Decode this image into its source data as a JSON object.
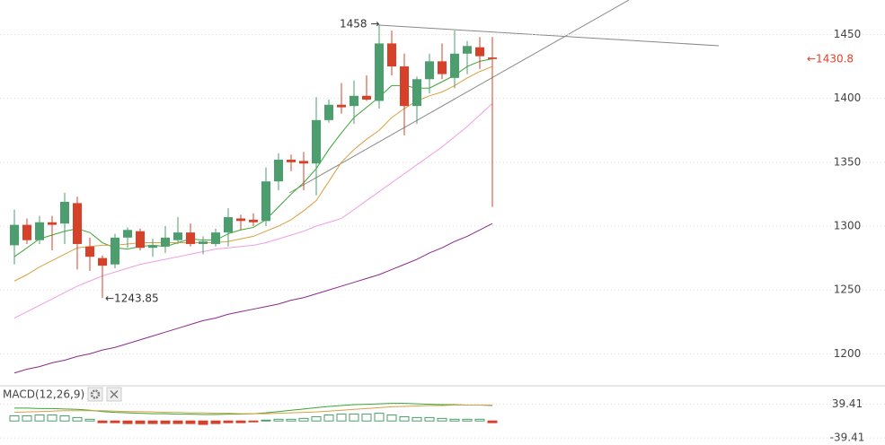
{
  "chart_data": [
    {
      "type": "candlestick",
      "open": [
        1285,
        1301,
        1289,
        1303,
        1302,
        1318,
        1284,
        1275,
        1270,
        1291,
        1296,
        1283,
        1284,
        1289,
        1295,
        1286,
        1286,
        1295,
        1306,
        1305,
        1304,
        1335,
        1352,
        1351,
        1349,
        1383,
        1395,
        1394,
        1402,
        1398,
        1443,
        1425,
        1394,
        1415,
        1429,
        1416,
        1435,
        1440,
        1432
      ],
      "high": [
        1313,
        1306,
        1308,
        1308,
        1326,
        1323,
        1291,
        1277,
        1294,
        1299,
        1298,
        1290,
        1300,
        1307,
        1302,
        1292,
        1298,
        1314,
        1309,
        1310,
        1346,
        1357,
        1356,
        1358,
        1401,
        1399,
        1412,
        1414,
        1418,
        1458,
        1453,
        1435,
        1417,
        1435,
        1443,
        1453,
        1445,
        1448,
        1448
      ],
      "low": [
        1270,
        1286,
        1286,
        1281,
        1286,
        1266,
        1265,
        1243.85,
        1267,
        1283,
        1281,
        1276,
        1279,
        1286,
        1284,
        1278,
        1284,
        1284,
        1297,
        1300,
        1300,
        1328,
        1343,
        1328,
        1324,
        1381,
        1388,
        1380,
        1398,
        1392,
        1418,
        1371,
        1380,
        1404,
        1415,
        1408,
        1419,
        1423,
        1315
      ],
      "close": [
        1301,
        1289,
        1303,
        1301,
        1319,
        1286,
        1276,
        1269,
        1291,
        1297,
        1283,
        1285,
        1291,
        1295,
        1286,
        1288,
        1295,
        1307,
        1304,
        1303,
        1335,
        1352,
        1350,
        1349,
        1383,
        1395,
        1393,
        1402,
        1399,
        1443,
        1425,
        1394,
        1415,
        1429,
        1419,
        1435,
        1441,
        1433,
        1430.8
      ],
      "up_color": "#4d9e6e",
      "down_color": "#d6412a",
      "lines": [
        {
          "color": "#3aa535",
          "values": [
            1276,
            1283,
            1290,
            1293,
            1296,
            1298,
            1295,
            1287,
            1283,
            1282,
            1284,
            1285,
            1284,
            1287,
            1290,
            1289,
            1289,
            1294,
            1297,
            1299,
            1305,
            1315,
            1325,
            1334,
            1345,
            1360,
            1373,
            1385,
            1393,
            1401,
            1410,
            1410,
            1408,
            1408,
            1413,
            1418,
            1425,
            1429,
            1431
          ]
        },
        {
          "color": "#d9a043",
          "values": [
            1257,
            1262,
            1268,
            1273,
            1278,
            1283,
            1284,
            1285,
            1285,
            1286,
            1287,
            1287,
            1287,
            1287,
            1287,
            1287,
            1287,
            1288,
            1290,
            1292,
            1296,
            1300,
            1305,
            1312,
            1320,
            1335,
            1350,
            1360,
            1368,
            1375,
            1385,
            1392,
            1398,
            1402,
            1405,
            1410,
            1416,
            1421,
            1425
          ]
        },
        {
          "color": "#ee9ee6",
          "values": [
            1228,
            1233,
            1238,
            1243,
            1248,
            1253,
            1257,
            1261,
            1264,
            1267,
            1270,
            1272,
            1274,
            1276,
            1278,
            1280,
            1282,
            1283,
            1284,
            1285,
            1287,
            1290,
            1293,
            1296,
            1300,
            1303,
            1306,
            1313,
            1320,
            1327,
            1334,
            1341,
            1348,
            1355,
            1362,
            1370,
            1378,
            1387,
            1396
          ]
        },
        {
          "color": "#8a2a8c",
          "values": [
            1185,
            1188,
            1190,
            1193,
            1195,
            1198,
            1200,
            1203,
            1205,
            1208,
            1211,
            1214,
            1217,
            1220,
            1223,
            1226,
            1228,
            1231,
            1233,
            1235,
            1237,
            1239,
            1242,
            1244,
            1247,
            1250,
            1253,
            1256,
            1259,
            1262,
            1266,
            1270,
            1274,
            1279,
            1283,
            1288,
            1292,
            1297,
            1302
          ]
        }
      ],
      "annotations": [
        {
          "text": "1458 →",
          "color": "#333333"
        },
        {
          "text": "←1243.85",
          "color": "#333333"
        },
        {
          "text": "←1430.8",
          "color": "#e0412b"
        }
      ],
      "ylim": [
        1175,
        1477
      ],
      "yticks": [
        1200,
        1250,
        1300,
        1350,
        1400,
        1450
      ],
      "grid": true
    },
    {
      "type": "macd",
      "title": "MACD(12,26,9)",
      "histogram": [
        12,
        12,
        14,
        14,
        12,
        8,
        4,
        -4,
        -4,
        -6,
        -6,
        -6,
        -6,
        -6,
        -6,
        -8,
        -6,
        -4,
        -4,
        -2,
        2,
        4,
        4,
        6,
        10,
        14,
        16,
        16,
        16,
        18,
        14,
        10,
        8,
        8,
        6,
        4,
        4,
        4,
        -4
      ],
      "up_color": "#4d9e6e",
      "down_color": "#d6412a",
      "lines": [
        {
          "color": "#3aa535",
          "values": [
            30,
            30,
            29,
            29,
            28,
            27,
            25,
            22,
            20,
            19,
            18,
            17,
            17,
            16,
            16,
            15,
            15,
            16,
            16,
            17,
            19,
            22,
            25,
            28,
            31,
            34,
            36,
            38,
            39,
            40,
            41,
            41,
            40,
            39,
            38,
            38,
            37,
            37,
            36
          ]
        },
        {
          "color": "#d9a043",
          "values": [
            20,
            21,
            22,
            23,
            24,
            24,
            24,
            24,
            23,
            22,
            22,
            21,
            20,
            20,
            19,
            19,
            18,
            18,
            17,
            17,
            17,
            18,
            19,
            20,
            21,
            23,
            25,
            27,
            29,
            31,
            33,
            34,
            35,
            36,
            36,
            37,
            37,
            37,
            37
          ]
        }
      ],
      "ylim": [
        -56,
        82
      ],
      "yticks": [
        -39.41,
        39.41
      ],
      "grid": true
    }
  ]
}
